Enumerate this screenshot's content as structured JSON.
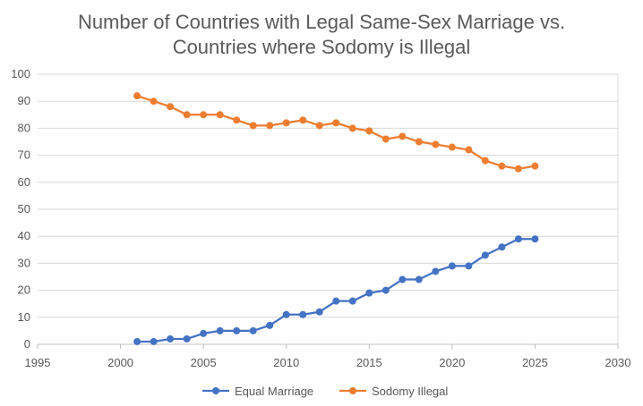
{
  "chart_data": {
    "type": "scatter",
    "title_lines": [
      "Number of Countries with Legal Same-Sex Marriage vs.",
      "Countries where Sodomy is Illegal"
    ],
    "xlabel": "",
    "ylabel": "",
    "xlim": [
      1995,
      2030
    ],
    "ylim": [
      0,
      100
    ],
    "x_ticks": [
      1995,
      2000,
      2005,
      2010,
      2015,
      2020,
      2025,
      2030
    ],
    "y_ticks": [
      0,
      10,
      20,
      30,
      40,
      50,
      60,
      70,
      80,
      90,
      100
    ],
    "grid": "horizontal",
    "legend_position": "bottom",
    "series": [
      {
        "name": "Equal Marriage",
        "color": "#4472c4",
        "marker": "circle",
        "x": [
          2001,
          2002,
          2003,
          2004,
          2005,
          2006,
          2007,
          2008,
          2009,
          2010,
          2011,
          2012,
          2013,
          2014,
          2015,
          2016,
          2017,
          2018,
          2019,
          2020,
          2021,
          2022,
          2023,
          2024,
          2025
        ],
        "y": [
          1,
          1,
          2,
          2,
          4,
          5,
          5,
          5,
          7,
          11,
          11,
          12,
          16,
          16,
          19,
          20,
          24,
          24,
          27,
          29,
          29,
          33,
          36,
          39,
          39
        ]
      },
      {
        "name": "Sodomy Illegal",
        "color": "#ed7d31",
        "marker": "circle",
        "x": [
          2001,
          2002,
          2003,
          2004,
          2005,
          2006,
          2007,
          2008,
          2009,
          2010,
          2011,
          2012,
          2013,
          2014,
          2015,
          2016,
          2017,
          2018,
          2019,
          2020,
          2021,
          2022,
          2023,
          2024,
          2025
        ],
        "y": [
          92,
          90,
          88,
          85,
          85,
          85,
          83,
          81,
          81,
          82,
          83,
          81,
          82,
          80,
          79,
          76,
          77,
          75,
          74,
          73,
          72,
          68,
          66,
          65,
          66
        ]
      }
    ]
  }
}
